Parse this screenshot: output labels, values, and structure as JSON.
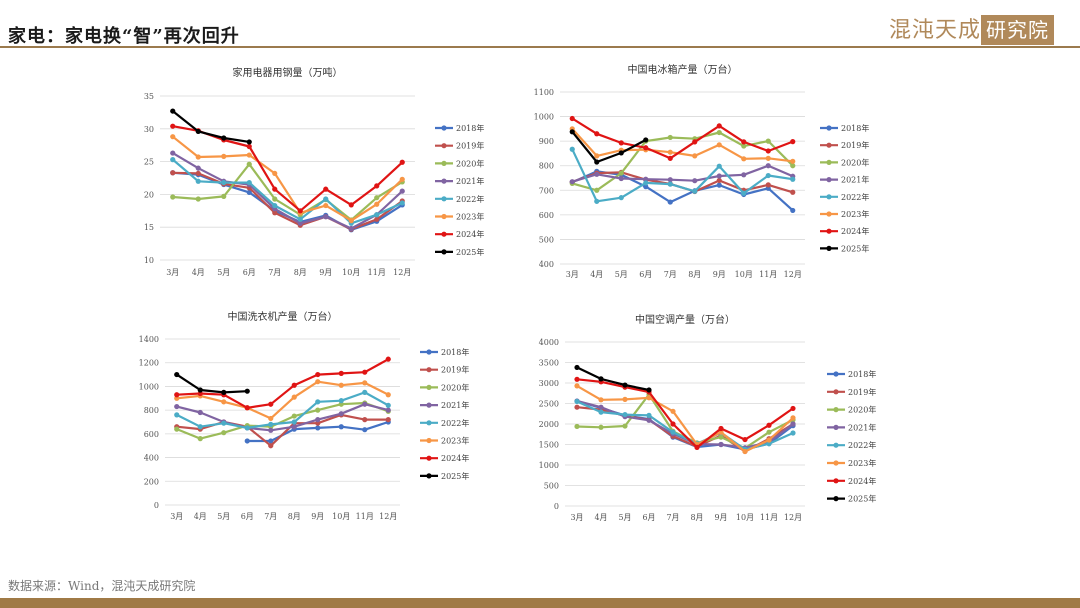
{
  "header": {
    "title": "家电：家电换“智”再次回升",
    "logo_text": "混沌天成",
    "logo_box": "研究院"
  },
  "footer": {
    "source": "数据来源：Wind，混沌天成研究院"
  },
  "colors": {
    "2018年": "#4472c4",
    "2019年": "#c0504d",
    "2020年": "#9bbb59",
    "2021年": "#8064a2",
    "2022年": "#4bacc6",
    "2023年": "#f79646",
    "2024年": "#e01414",
    "2025年": "#000000"
  },
  "chart_data": [
    {
      "type": "line",
      "title": "家用电器用钢量（万吨）",
      "categories": [
        "3月",
        "4月",
        "5月",
        "6月",
        "7月",
        "8月",
        "9月",
        "10月",
        "11月",
        "12月"
      ],
      "ylim": [
        10,
        35
      ],
      "yticks": [
        10,
        15,
        20,
        25,
        30,
        35
      ],
      "legend": "right",
      "grid": true,
      "series": [
        {
          "name": "2018年",
          "values": [
            23.3,
            23.0,
            21.5,
            20.3,
            17.5,
            15.8,
            16.8,
            14.6,
            15.9,
            18.4
          ]
        },
        {
          "name": "2019年",
          "values": [
            23.3,
            23.2,
            21.6,
            21.0,
            17.2,
            15.3,
            16.6,
            14.7,
            16.2,
            19.0
          ]
        },
        {
          "name": "2020年",
          "values": [
            19.6,
            19.3,
            19.7,
            24.6,
            19.3,
            16.9,
            19.2,
            16.1,
            19.5,
            21.9
          ]
        },
        {
          "name": "2021年",
          "values": [
            26.3,
            24.0,
            22.0,
            21.5,
            17.8,
            15.6,
            16.6,
            14.8,
            16.9,
            20.5
          ]
        },
        {
          "name": "2022年",
          "values": [
            25.3,
            22.0,
            21.8,
            21.8,
            18.3,
            16.2,
            19.3,
            15.6,
            16.9,
            18.7
          ]
        },
        {
          "name": "2023年",
          "values": [
            28.8,
            25.7,
            25.8,
            26.0,
            23.2,
            17.2,
            18.3,
            16.0,
            18.5,
            22.3
          ]
        },
        {
          "name": "2024年",
          "values": [
            30.4,
            29.7,
            28.3,
            27.3,
            20.8,
            17.5,
            20.8,
            18.4,
            21.3,
            24.9
          ]
        },
        {
          "name": "2025年",
          "values": [
            32.7,
            29.6,
            28.6,
            28.0,
            null,
            null,
            null,
            null,
            null,
            null
          ]
        }
      ]
    },
    {
      "type": "line",
      "title": "中国电冰箱产量（万台）",
      "categories": [
        "3月",
        "4月",
        "5月",
        "6月",
        "7月",
        "8月",
        "9月",
        "10月",
        "11月",
        "12月"
      ],
      "ylim": [
        400,
        1100
      ],
      "yticks": [
        400,
        500,
        600,
        700,
        800,
        900,
        1000,
        1100
      ],
      "legend": "right",
      "grid": true,
      "series": [
        {
          "name": "2018年",
          "values": [
            733,
            777,
            763,
            715,
            652,
            698,
            721,
            683,
            708,
            618
          ]
        },
        {
          "name": "2019年",
          "values": [
            734,
            770,
            773,
            743,
            726,
            695,
            740,
            700,
            722,
            692
          ]
        },
        {
          "name": "2020年",
          "values": [
            728,
            700,
            770,
            900,
            915,
            910,
            935,
            880,
            900,
            800
          ]
        },
        {
          "name": "2021年",
          "values": [
            735,
            765,
            748,
            745,
            743,
            739,
            758,
            763,
            800,
            757
          ]
        },
        {
          "name": "2022年",
          "values": [
            867,
            655,
            670,
            730,
            725,
            696,
            798,
            688,
            760,
            745
          ]
        },
        {
          "name": "2023年",
          "values": [
            950,
            840,
            863,
            865,
            855,
            840,
            885,
            828,
            830,
            818
          ]
        },
        {
          "name": "2024年",
          "values": [
            992,
            930,
            893,
            873,
            830,
            897,
            962,
            897,
            860,
            898
          ]
        },
        {
          "name": "2025年",
          "values": [
            938,
            815,
            852,
            905,
            null,
            null,
            null,
            null,
            null,
            null
          ]
        }
      ]
    },
    {
      "type": "line",
      "title": "中国洗衣机产量（万台）",
      "categories": [
        "3月",
        "4月",
        "5月",
        "6月",
        "7月",
        "8月",
        "9月",
        "10月",
        "11月",
        "12月"
      ],
      "ylim": [
        0,
        1400
      ],
      "yticks": [
        0,
        200,
        400,
        600,
        800,
        1000,
        1200,
        1400
      ],
      "legend": "right",
      "grid": true,
      "series": [
        {
          "name": "2018年",
          "values": [
            null,
            null,
            null,
            540,
            540,
            640,
            650,
            660,
            635,
            700
          ]
        },
        {
          "name": "2019年",
          "values": [
            660,
            640,
            700,
            660,
            500,
            690,
            690,
            760,
            720,
            720
          ]
        },
        {
          "name": "2020年",
          "values": [
            640,
            560,
            610,
            670,
            660,
            750,
            800,
            850,
            860,
            790
          ]
        },
        {
          "name": "2021年",
          "values": [
            830,
            780,
            700,
            650,
            630,
            660,
            720,
            770,
            850,
            800
          ]
        },
        {
          "name": "2022年",
          "values": [
            760,
            660,
            690,
            650,
            680,
            700,
            870,
            880,
            950,
            840
          ]
        },
        {
          "name": "2023年",
          "values": [
            900,
            920,
            870,
            820,
            730,
            910,
            1040,
            1010,
            1030,
            930
          ]
        },
        {
          "name": "2024年",
          "values": [
            930,
            940,
            930,
            820,
            850,
            1010,
            1100,
            1110,
            1120,
            1230
          ]
        },
        {
          "name": "2025年",
          "values": [
            1100,
            970,
            950,
            960,
            null,
            null,
            null,
            null,
            null,
            null
          ]
        }
      ]
    },
    {
      "type": "line",
      "title": "中国空调产量（万台）",
      "categories": [
        "3月",
        "4月",
        "5月",
        "6月",
        "7月",
        "8月",
        "9月",
        "10月",
        "11月",
        "12月"
      ],
      "ylim": [
        0,
        4000
      ],
      "yticks": [
        0,
        500,
        1000,
        1500,
        2000,
        2500,
        3000,
        3500,
        4000
      ],
      "legend": "right",
      "grid": true,
      "series": [
        {
          "name": "2018年",
          "values": [
            2560,
            2390,
            2210,
            2120,
            1680,
            1440,
            1500,
            1380,
            1520,
            1960
          ]
        },
        {
          "name": "2019年",
          "values": [
            2410,
            2350,
            2200,
            2100,
            1700,
            1450,
            1720,
            1330,
            1640,
            2000
          ]
        },
        {
          "name": "2020年",
          "values": [
            1940,
            1920,
            1950,
            2720,
            1820,
            1540,
            1680,
            1410,
            1800,
            2100
          ]
        },
        {
          "name": "2021年",
          "values": [
            2560,
            2410,
            2180,
            2090,
            1760,
            1510,
            1500,
            1420,
            1560,
            2000
          ]
        },
        {
          "name": "2022年",
          "values": [
            2550,
            2290,
            2230,
            2210,
            1800,
            1520,
            1790,
            1380,
            1520,
            1780
          ]
        },
        {
          "name": "2023年",
          "values": [
            2930,
            2590,
            2600,
            2640,
            2310,
            1500,
            1800,
            1330,
            1610,
            2150
          ]
        },
        {
          "name": "2024年",
          "values": [
            3090,
            3030,
            2900,
            2780,
            2000,
            1430,
            1890,
            1620,
            1970,
            2380
          ]
        },
        {
          "name": "2025年",
          "values": [
            3380,
            3100,
            2950,
            2830,
            null,
            null,
            null,
            null,
            null,
            null
          ]
        }
      ]
    }
  ]
}
